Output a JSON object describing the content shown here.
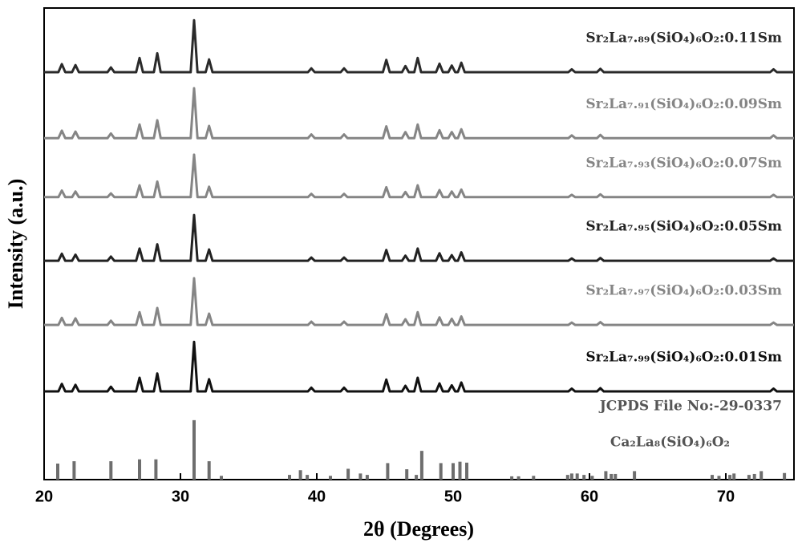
{
  "chart_data": {
    "type": "line",
    "xlabel": "2θ (Degrees)",
    "ylabel": "Intensity (a.u.)",
    "xlim": [
      20,
      75
    ],
    "xticks": [
      20,
      30,
      40,
      50,
      60,
      70
    ],
    "ylim": [
      0,
      100
    ],
    "x": [
      20,
      21.05,
      21.3,
      21.55,
      22.05,
      22.3,
      22.55,
      24.65,
      24.9,
      25.15,
      26.75,
      27.0,
      27.25,
      28.05,
      28.3,
      28.55,
      30.75,
      31.0,
      31.25,
      31.85,
      32.1,
      32.35,
      39.35,
      39.6,
      39.85,
      41.75,
      42.0,
      42.25,
      44.85,
      45.1,
      45.35,
      46.25,
      46.5,
      46.75,
      47.15,
      47.4,
      47.65,
      48.75,
      49.0,
      49.25,
      49.65,
      49.9,
      50.15,
      50.35,
      50.6,
      50.85,
      58.45,
      58.7,
      58.95,
      60.55,
      60.8,
      61.05,
      73.25,
      73.5,
      73.75,
      75
    ],
    "series": [
      {
        "name": "Sr₂La₇.₈₉(SiO₄)₆O₂:0.11Sm",
        "color": "#2a2a2a",
        "values": [
          86.4,
          86.4,
          88.1,
          86.4,
          86.4,
          87.9,
          86.4,
          86.4,
          87.4,
          86.4,
          86.4,
          89.4,
          86.4,
          86.4,
          90.4,
          86.4,
          86.4,
          97.4,
          86.4,
          86.4,
          89.1,
          86.4,
          86.4,
          87.2,
          86.4,
          86.4,
          87.2,
          86.4,
          86.4,
          89.0,
          86.4,
          86.4,
          87.7,
          86.4,
          86.4,
          89.4,
          86.4,
          86.4,
          88.2,
          86.4,
          86.4,
          87.8,
          86.4,
          86.4,
          88.4,
          86.4,
          86.4,
          87.0,
          86.4,
          86.4,
          87.1,
          86.4,
          86.4,
          87.0,
          86.4,
          86.4
        ]
      },
      {
        "name": "Sr₂La₇.₉₁(SiO₄)₆O₂:0.09Sm",
        "color": "#858585",
        "values": [
          72.4,
          72.4,
          74.0,
          72.4,
          72.4,
          73.8,
          72.4,
          72.4,
          73.4,
          72.4,
          72.4,
          75.3,
          72.4,
          72.4,
          76.2,
          72.4,
          72.4,
          83.0,
          72.4,
          72.4,
          75.0,
          72.4,
          72.4,
          73.2,
          72.4,
          72.4,
          73.2,
          72.4,
          72.4,
          74.9,
          72.4,
          72.4,
          73.7,
          72.4,
          72.4,
          75.3,
          72.4,
          72.4,
          74.1,
          72.4,
          72.4,
          73.7,
          72.4,
          72.4,
          74.3,
          72.4,
          72.4,
          73.0,
          72.4,
          72.4,
          73.1,
          72.4,
          72.4,
          73.0,
          72.4,
          72.4
        ]
      },
      {
        "name": "Sr₂La₇.₉₃(SiO₄)₆O₂:0.07Sm",
        "color": "#858585",
        "values": [
          59.9,
          59.9,
          61.3,
          59.9,
          59.9,
          61.1,
          59.9,
          59.9,
          60.7,
          59.9,
          59.9,
          62.4,
          59.9,
          59.9,
          63.2,
          59.9,
          59.9,
          68.9,
          59.9,
          59.9,
          62.1,
          59.9,
          59.9,
          60.6,
          59.9,
          59.9,
          60.6,
          59.9,
          59.9,
          62.0,
          59.9,
          59.9,
          61.0,
          59.9,
          59.9,
          62.4,
          59.9,
          59.9,
          61.4,
          59.9,
          59.9,
          61.1,
          59.9,
          59.9,
          61.5,
          59.9,
          59.9,
          60.4,
          59.9,
          59.9,
          60.5,
          59.9,
          59.9,
          60.4,
          59.9,
          59.9
        ]
      },
      {
        "name": "Sr₂La₇.₉₅(SiO₄)₆O₂:0.05Sm",
        "color": "#222222",
        "values": [
          46.4,
          46.4,
          47.9,
          46.4,
          46.4,
          47.7,
          46.4,
          46.4,
          47.3,
          46.4,
          46.4,
          49.0,
          46.4,
          46.4,
          49.9,
          46.4,
          46.4,
          56.1,
          46.4,
          46.4,
          48.8,
          46.4,
          46.4,
          47.1,
          46.4,
          46.4,
          47.1,
          46.4,
          46.4,
          48.7,
          46.4,
          46.4,
          47.5,
          46.4,
          46.4,
          49.0,
          46.4,
          46.4,
          48.0,
          46.4,
          46.4,
          47.6,
          46.4,
          46.4,
          48.2,
          46.4,
          46.4,
          46.9,
          46.4,
          46.4,
          47.0,
          46.4,
          46.4,
          46.9,
          46.4,
          46.4
        ]
      },
      {
        "name": "Sr₂La₇.₉₇(SiO₄)₆O₂:0.03Sm",
        "color": "#858585",
        "values": [
          32.8,
          32.8,
          34.3,
          32.8,
          32.8,
          34.2,
          32.8,
          32.8,
          33.7,
          32.8,
          32.8,
          35.5,
          32.8,
          32.8,
          36.4,
          32.8,
          32.8,
          42.7,
          32.8,
          32.8,
          35.2,
          32.8,
          32.8,
          33.5,
          32.8,
          32.8,
          33.5,
          32.8,
          32.8,
          35.1,
          32.8,
          32.8,
          34.0,
          32.8,
          32.8,
          35.5,
          32.8,
          32.8,
          34.4,
          32.8,
          32.8,
          34.1,
          32.8,
          32.8,
          34.6,
          32.8,
          32.8,
          33.3,
          32.8,
          32.8,
          33.4,
          32.8,
          32.8,
          33.3,
          32.8,
          32.8
        ]
      },
      {
        "name": "Sr₂La₇.₉₉(SiO₄)₆O₂:0.01Sm",
        "color": "#111111",
        "values": [
          18.7,
          18.7,
          20.3,
          18.7,
          18.7,
          20.1,
          18.7,
          18.7,
          19.7,
          18.7,
          18.7,
          21.6,
          18.7,
          18.7,
          22.5,
          18.7,
          18.7,
          29.2,
          18.7,
          18.7,
          21.3,
          18.7,
          18.7,
          19.5,
          18.7,
          18.7,
          19.5,
          18.7,
          18.7,
          21.2,
          18.7,
          18.7,
          19.9,
          18.7,
          18.7,
          21.6,
          18.7,
          18.7,
          20.4,
          18.7,
          18.7,
          20.0,
          18.7,
          18.7,
          20.6,
          18.7,
          18.7,
          19.3,
          18.7,
          18.7,
          19.4,
          18.7,
          18.7,
          19.3,
          18.7,
          18.7
        ]
      }
    ],
    "reference": {
      "source": "JCPDS File No:-29-0337",
      "name": "Ca₂La₈(SiO₄)₆O₂",
      "color": "#6e6e6e",
      "x": [
        21.0,
        22.2,
        24.9,
        27.0,
        28.2,
        31.0,
        32.1,
        33.0,
        38.0,
        38.8,
        39.3,
        41.0,
        42.3,
        43.2,
        43.7,
        45.2,
        46.6,
        47.3,
        47.7,
        49.1,
        50.0,
        50.5,
        51.0,
        54.3,
        54.8,
        55.9,
        58.4,
        58.7,
        59.1,
        59.6,
        60.2,
        61.2,
        61.6,
        61.9,
        63.3,
        69.0,
        69.5,
        70.3,
        70.6,
        71.7,
        72.1,
        72.6,
        74.3
      ],
      "values": [
        3.4,
        3.9,
        3.9,
        4.3,
        4.3,
        12.6,
        3.9,
        0.8,
        1,
        2,
        1,
        0.8,
        2.3,
        1.3,
        1,
        3.5,
        2.2,
        1,
        6.1,
        3.5,
        3.5,
        3.8,
        3.6,
        0.7,
        0.7,
        0.8,
        1,
        1.3,
        1.3,
        1,
        0.8,
        1.8,
        1.2,
        1.2,
        1.8,
        1,
        0.8,
        1,
        1.3,
        1,
        1.2,
        1.8,
        1.4
      ]
    }
  }
}
